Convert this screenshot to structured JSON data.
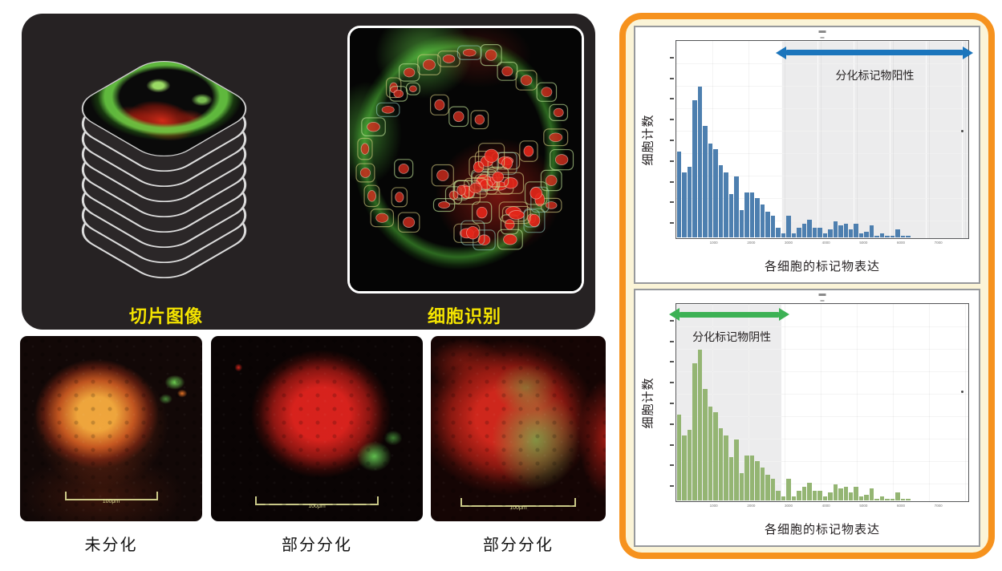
{
  "left_panel": {
    "bg_color": "#262223",
    "label_color": "#F4E400",
    "slice_stack_label": "切片图像",
    "cell_id_label": "细胞识别"
  },
  "micrographs": [
    {
      "label": "未分化",
      "scalebar": "100μm"
    },
    {
      "label": "部分分化",
      "scalebar": "100μm"
    },
    {
      "label": "部分分化",
      "scalebar": "100μm"
    }
  ],
  "right_panel": {
    "border_color": "#F6921E",
    "bg_color": "#FBF4D7"
  },
  "chart_data": [
    {
      "type": "bar",
      "subtype": "histogram",
      "ylabel": "细胞计数",
      "xlabel": "各细胞的标记物表达",
      "annotation": "分化标记物阳性",
      "annotation_color": "#1B75BC",
      "bar_color": "#4D7FAF",
      "shaded_side": "right",
      "threshold_fraction": 0.36,
      "xlim": [
        0,
        7800
      ],
      "x_ticks": [
        1000,
        2000,
        3000,
        4000,
        5000,
        6000,
        7000
      ],
      "y_tick_count": 9,
      "grid": true,
      "values": [
        44,
        33,
        36,
        70,
        77,
        57,
        48,
        45,
        37,
        33,
        22,
        31,
        14,
        23,
        23,
        20,
        17,
        13,
        11,
        5,
        2,
        11,
        2,
        5,
        7,
        9,
        5,
        5,
        2,
        4,
        8,
        6,
        7,
        4,
        7,
        2,
        3,
        6,
        1,
        2,
        1,
        1,
        4,
        1,
        1,
        0,
        0,
        0,
        0,
        0,
        0,
        0,
        0,
        0,
        0,
        0
      ],
      "outlier_point": {
        "x_fraction": 0.975,
        "y_fraction_from_top": 0.45
      }
    },
    {
      "type": "bar",
      "subtype": "histogram",
      "ylabel": "细胞计数",
      "xlabel": "各细胞的标记物表达",
      "annotation": "分化标记物阴性",
      "annotation_color": "#3CB154",
      "bar_color": "#94B573",
      "shaded_side": "left",
      "threshold_fraction": 0.36,
      "xlim": [
        0,
        7800
      ],
      "x_ticks": [
        1000,
        2000,
        3000,
        4000,
        5000,
        6000,
        7000
      ],
      "y_tick_count": 9,
      "grid": true,
      "values": [
        44,
        33,
        36,
        70,
        77,
        57,
        48,
        45,
        37,
        33,
        22,
        31,
        14,
        23,
        23,
        20,
        17,
        13,
        11,
        5,
        2,
        11,
        2,
        5,
        7,
        9,
        5,
        5,
        2,
        4,
        8,
        6,
        7,
        4,
        7,
        2,
        3,
        6,
        1,
        2,
        1,
        1,
        4,
        1,
        1,
        0,
        0,
        0,
        0,
        0,
        0,
        0,
        0,
        0,
        0,
        0
      ],
      "outlier_point": {
        "x_fraction": 0.975,
        "y_fraction_from_top": 0.44
      }
    }
  ]
}
